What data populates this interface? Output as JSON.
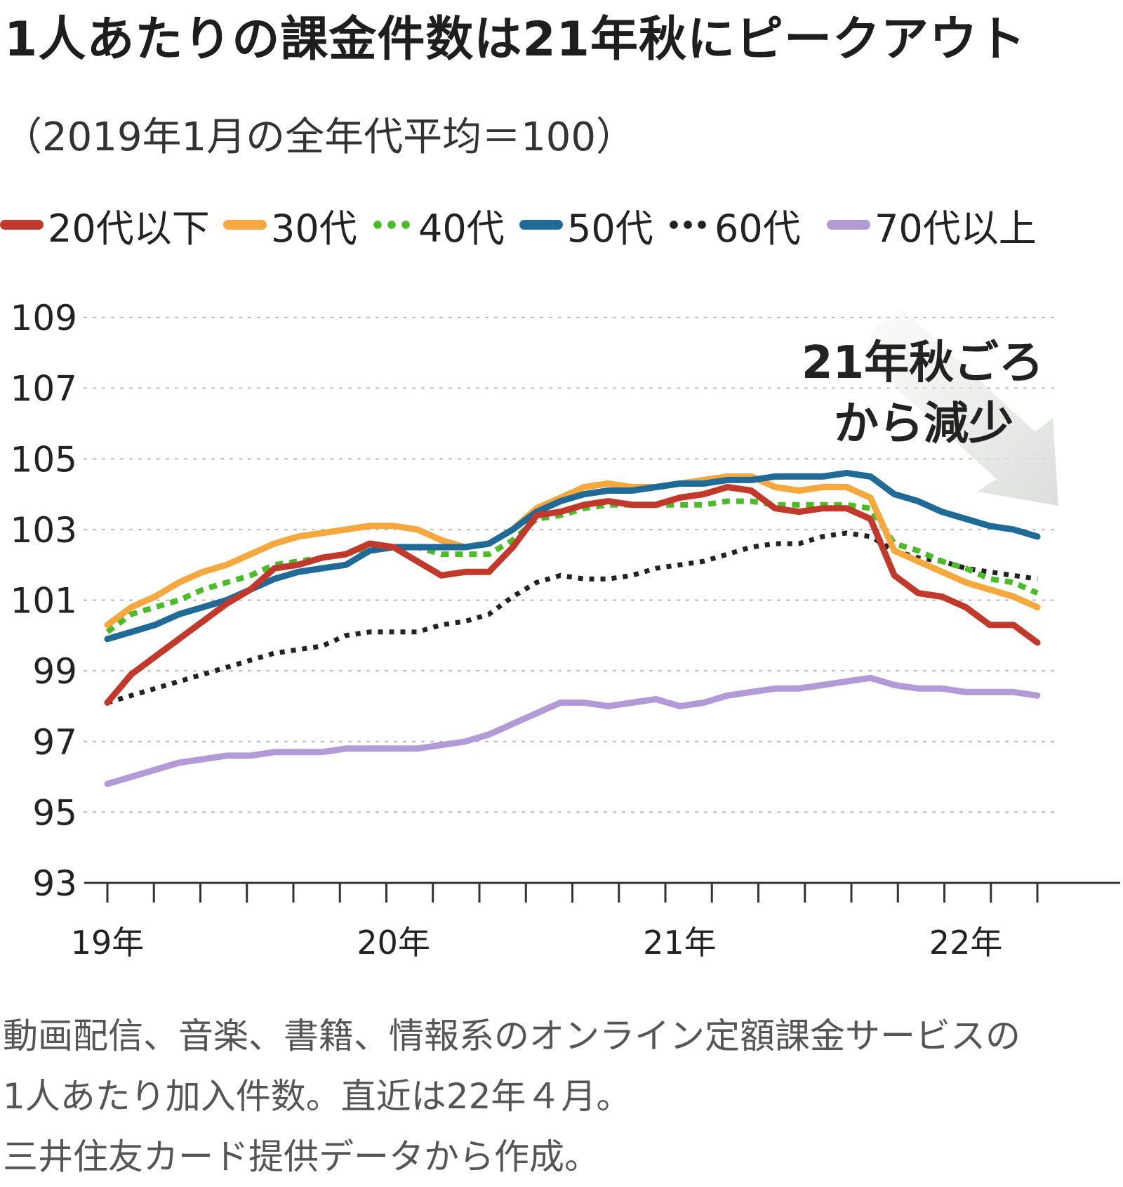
{
  "title": "1人あたりの課金件数は21年秋にピークアウト",
  "subtitle": "（2019年1月の全年代平均＝100）",
  "legend": [
    {
      "label": "20代以下",
      "color": "#c1392b",
      "dash": "solid"
    },
    {
      "label": "30代",
      "color": "#f4a83d",
      "dash": "solid"
    },
    {
      "label": "40代",
      "color": "#4cbb2a",
      "dash": "dotted"
    },
    {
      "label": "50代",
      "color": "#1f6a96",
      "dash": "solid"
    },
    {
      "label": "60代",
      "color": "#222222",
      "dash": "dotted"
    },
    {
      "label": "70代以上",
      "color": "#b29ad6",
      "dash": "solid"
    }
  ],
  "annotation": {
    "line1": "21年秋ごろ",
    "line2": "から減少"
  },
  "notes": [
    "動画配信、音楽、書籍、情報系のオンライン定額課金サービスの",
    "1人あたり加入件数。直近は22年４月。",
    "三井住友カード提供データから作成。"
  ],
  "chart_data": {
    "type": "line",
    "title": "1人あたりの課金件数は21年秋にピークアウト",
    "subtitle": "（2019年1月の全年代平均＝100）",
    "x_start": "2019-01",
    "x_end": "2022-04",
    "x_tick_labels": [
      "19年",
      "20年",
      "21年",
      "22年"
    ],
    "ylim": [
      93,
      109
    ],
    "y_ticks": [
      93,
      95,
      97,
      99,
      101,
      103,
      105,
      107,
      109
    ],
    "grid": "horizontal-dotted",
    "legend_position": "top",
    "series": [
      {
        "name": "20代以下",
        "color": "#c1392b",
        "dash": "solid",
        "values": [
          98.1,
          98.9,
          99.4,
          99.9,
          100.4,
          100.9,
          101.3,
          101.9,
          102.0,
          102.2,
          102.3,
          102.6,
          102.5,
          102.1,
          101.7,
          101.8,
          101.8,
          102.5,
          103.4,
          103.5,
          103.7,
          103.8,
          103.7,
          103.7,
          103.9,
          104.0,
          104.2,
          104.1,
          103.6,
          103.5,
          103.6,
          103.6,
          103.3,
          101.7,
          101.2,
          101.1,
          100.8,
          100.3,
          100.3,
          99.8
        ]
      },
      {
        "name": "30代",
        "color": "#f4a83d",
        "dash": "solid",
        "values": [
          100.3,
          100.8,
          101.1,
          101.5,
          101.8,
          102.0,
          102.3,
          102.6,
          102.8,
          102.9,
          103.0,
          103.1,
          103.1,
          103.0,
          102.7,
          102.5,
          102.6,
          103.0,
          103.6,
          103.9,
          104.2,
          104.3,
          104.2,
          104.2,
          104.3,
          104.4,
          104.5,
          104.5,
          104.2,
          104.1,
          104.2,
          104.2,
          103.9,
          102.4,
          102.1,
          101.8,
          101.5,
          101.3,
          101.1,
          100.8
        ]
      },
      {
        "name": "40代",
        "color": "#4cbb2a",
        "dash": "dotted",
        "values": [
          100.1,
          100.6,
          100.8,
          101.0,
          101.3,
          101.5,
          101.7,
          102.0,
          102.1,
          102.2,
          102.3,
          102.5,
          102.5,
          102.5,
          102.3,
          102.3,
          102.3,
          102.7,
          103.3,
          103.4,
          103.6,
          103.7,
          103.7,
          103.7,
          103.7,
          103.7,
          103.8,
          103.8,
          103.7,
          103.7,
          103.7,
          103.7,
          103.6,
          102.6,
          102.4,
          102.1,
          101.9,
          101.6,
          101.5,
          101.2
        ]
      },
      {
        "name": "50代",
        "color": "#1f6a96",
        "dash": "solid",
        "values": [
          99.9,
          100.1,
          100.3,
          100.6,
          100.8,
          101.0,
          101.3,
          101.6,
          101.8,
          101.9,
          102.0,
          102.4,
          102.5,
          102.5,
          102.5,
          102.5,
          102.6,
          103.0,
          103.5,
          103.8,
          104.0,
          104.1,
          104.1,
          104.2,
          104.3,
          104.3,
          104.4,
          104.4,
          104.5,
          104.5,
          104.5,
          104.6,
          104.5,
          104.0,
          103.8,
          103.5,
          103.3,
          103.1,
          103.0,
          102.8
        ]
      },
      {
        "name": "60代",
        "color": "#222222",
        "dash": "dotted",
        "values": [
          98.1,
          98.3,
          98.5,
          98.7,
          98.9,
          99.1,
          99.3,
          99.5,
          99.6,
          99.7,
          100.0,
          100.1,
          100.1,
          100.1,
          100.3,
          100.4,
          100.6,
          101.1,
          101.5,
          101.7,
          101.6,
          101.6,
          101.7,
          101.9,
          102.0,
          102.1,
          102.3,
          102.5,
          102.6,
          102.6,
          102.8,
          102.9,
          102.8,
          102.4,
          102.2,
          102.1,
          101.9,
          101.8,
          101.7,
          101.6
        ]
      },
      {
        "name": "70代以上",
        "color": "#b29ad6",
        "dash": "solid",
        "values": [
          95.8,
          96.0,
          96.2,
          96.4,
          96.5,
          96.6,
          96.6,
          96.7,
          96.7,
          96.7,
          96.8,
          96.8,
          96.8,
          96.8,
          96.9,
          97.0,
          97.2,
          97.5,
          97.8,
          98.1,
          98.1,
          98.0,
          98.1,
          98.2,
          98.0,
          98.1,
          98.3,
          98.4,
          98.5,
          98.5,
          98.6,
          98.7,
          98.8,
          98.6,
          98.5,
          98.5,
          98.4,
          98.4,
          98.4,
          98.3
        ]
      }
    ]
  }
}
